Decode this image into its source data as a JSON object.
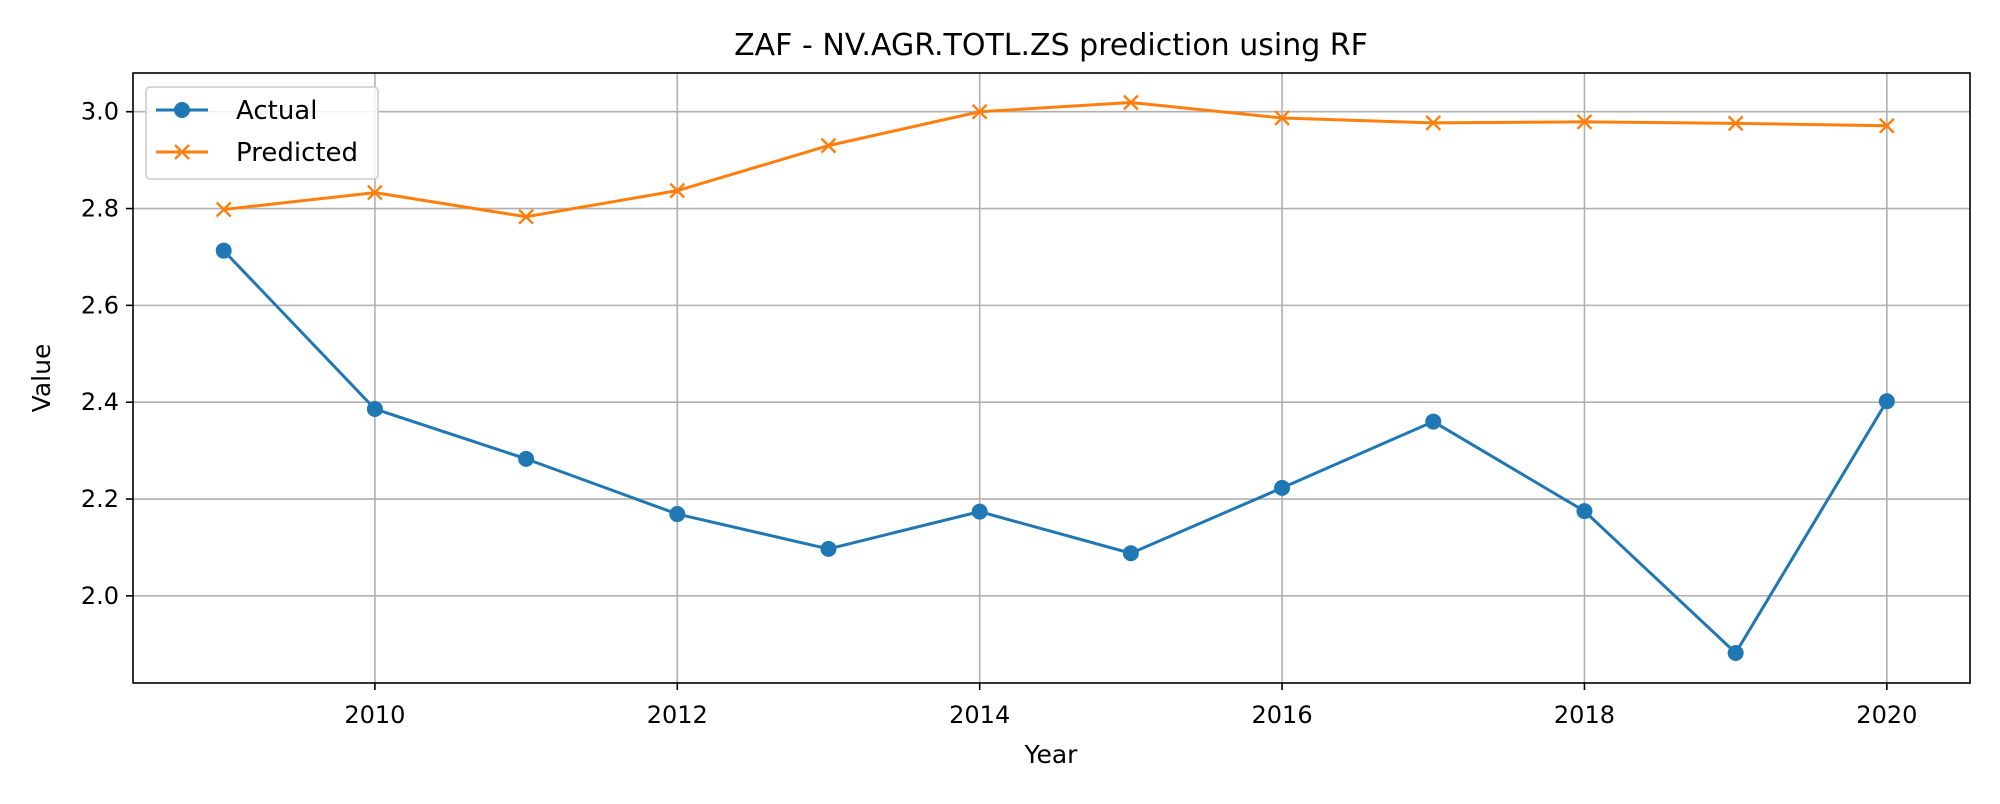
{
  "chart_data": {
    "type": "line",
    "title": "ZAF - NV.AGR.TOTL.ZS prediction using RF",
    "xlabel": "Year",
    "ylabel": "Value",
    "x": [
      2009,
      2010,
      2011,
      2012,
      2013,
      2014,
      2015,
      2016,
      2017,
      2018,
      2019,
      2020
    ],
    "series": [
      {
        "name": "Actual",
        "marker": "circle",
        "color": "#1f77b4",
        "values": [
          2.713,
          2.386,
          2.283,
          2.169,
          2.097,
          2.174,
          2.088,
          2.223,
          2.36,
          2.175,
          1.882,
          2.402
        ]
      },
      {
        "name": "Predicted",
        "marker": "x",
        "color": "#ff7f0e",
        "values": [
          2.798,
          2.833,
          2.783,
          2.837,
          2.93,
          3.0,
          3.019,
          2.987,
          2.977,
          2.979,
          2.976,
          2.971
        ]
      }
    ],
    "xlim": [
      2008.4,
      2020.55
    ],
    "ylim": [
      1.82,
      3.08
    ],
    "xticks": [
      "2010",
      "2012",
      "2014",
      "2016",
      "2018",
      "2020"
    ],
    "yticks": [
      "2.0",
      "2.2",
      "2.4",
      "2.6",
      "2.8",
      "3.0"
    ],
    "grid": true,
    "legend_position": "top-left"
  }
}
